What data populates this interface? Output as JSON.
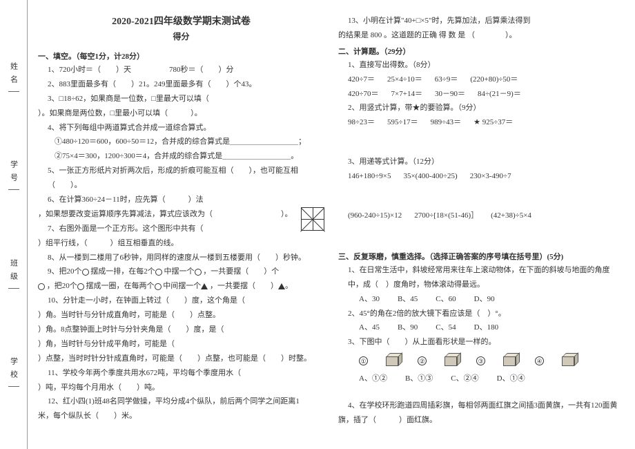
{
  "gutter": {
    "name": "姓名",
    "id": "学号",
    "class": "班级",
    "school": "学校"
  },
  "header": {
    "title": "2020-2021四年级数学期末测试卷",
    "score": "得分"
  },
  "s1": {
    "head": "一、填空。（每空1分，计28分）",
    "q1": "1、720小时＝（　　）天　　　　　780秒＝（　　）分",
    "q2": "2、883里面最多有（　　）21。249里面最多有（　　）个43。",
    "q3a": "3、□18÷62，如果商是一位数，□里最大可以填（　　",
    "q3b": "）。如果商是两位数，□里最小可以填（　　　）。",
    "q4": "4、将下列每组中两道算式合并成一道综合算式。",
    "q4a": "①480÷120＝600，600÷50＝12，合并成的综合算式是＿＿＿＿＿＿＿＿＿；",
    "q4b": "②75×4＝300，1200÷300＝4，合并成的综合算式是＿＿＿＿＿＿＿＿＿。",
    "q5": "5、一张正方形纸片对折两次后，形成的折痕可能互相（　　），也可能互相（　　）。",
    "q6a": "6、在计算360÷24－11时，应先算（　　　）法",
    "q6b": "，如果想要改变运算顺序先算减法，算式应该改为（　　　　　　　　　）。",
    "q7a": "7、右图外面是一个正方形。这个图形中共有（　　",
    "q7b": "）组平行线，（　　　）组互相垂直的线。",
    "q8": "8、从一楼到二楼用了6秒钟，用同样的速度从一楼到五楼要用（　　）秒钟。",
    "q9a": "9、把20个",
    "q9b": "摆成一排，在每2个",
    "q9c": "中摆一个",
    "q9d": "，一共要摆（　　）个",
    "q9e": "，把20个",
    "q9f": "摆成一圈，在每两个",
    "q9g": "中间摆一个",
    "q9h": "，一共要摆（　　）",
    "q10a": "10、分针走一小时，在钟面上转过（　　）度，这个角是（　　",
    "q10b": "）角。当时针与分针成直角时，可能是（　　）点整。",
    "q10c": "）角。8点整钟面上时针与分针夹角是（　　）度，是（　　",
    "q10d": "）角，当时针与分针成平角时，可能是（　　",
    "q10e": "）点整，当时时针分针成直角时，可能是（　　）点整，也可能是（　　）时整。",
    "q11a": "11、学校今年两个季度共用水672吨，平均每个季度用水（　　",
    "q11b": "）吨，平均每个月用水（　　）吨。",
    "q12a": "12、红小四(1)班48名同学做操，平均分成4个纵队，前后两个同学之间距离1",
    "q12b": "米，每个纵队长（　　）米。",
    "q13a": "13、小明在计算\"40+□×5\"时，先算加法，后算乘法得到",
    "q13b": "的结果是 800 。这道题的正确 得 数 是 （　　　　）。"
  },
  "s2": {
    "head": "二、计算题。（29分）",
    "sub1": "1、直接写出得数。（8分）",
    "r1a": "420÷7＝",
    "r1b": "25×4÷10＝",
    "r1c": "63÷9＝",
    "r1d": "(220+80)÷50＝",
    "r2a": "420÷70＝",
    "r2b": "7×7+14＝",
    "r2c": "30－90＝",
    "r2d": "84÷(21－9)＝",
    "sub2": "2、用竖式计算，带★的要验算。（9分）",
    "v1": "98÷23＝",
    "v2": "595÷17＝",
    "v3": "989÷43＝",
    "v4": "★ 925÷37＝",
    "sub3": "3、用递等式计算。（12分）",
    "e1": "146+180÷9×5",
    "e2": "35×(400-400÷25)",
    "e3": "230×3-490÷7",
    "e4": "(960-240÷15)×12",
    "e5": "2700÷[18×(51-46)］",
    "e6": "(42+38)÷5×4"
  },
  "s3": {
    "head": "三、反复琢磨，慎重选择。（选择正确答案的序号填在括号里）(5分)",
    "q1": "1、在日常生活中，斜坡经常用来往车上滚动物体，在下面的斜坡与地面的角度中，成（　）度角时，物体滚动得最远。",
    "o1a": "A、30",
    "o1b": "B、45",
    "o1c": "C、60",
    "o1d": "D、90",
    "q2": "2、45°的角在2倍的放大镜下看应该是（　）°。",
    "o2a": "A、45",
    "o2b": "B、90",
    "o2c": "C、54",
    "o2d": "D、180",
    "q3": "3、下图中（　　）从上面看形状是一样的。",
    "c1": "①",
    "c2": "②",
    "c3": "③",
    "c4": "④",
    "o3a": "A、①②",
    "o3b": "B、①③",
    "o3c": "C、②④",
    "o3d": "D、①④",
    "q4a": "4、在学校环形跑道四周插彩旗，每相邻两面红旗之间插3面黄旗，一共有120面黄",
    "q4b": "旗，插了（　　　）面红旗。"
  }
}
